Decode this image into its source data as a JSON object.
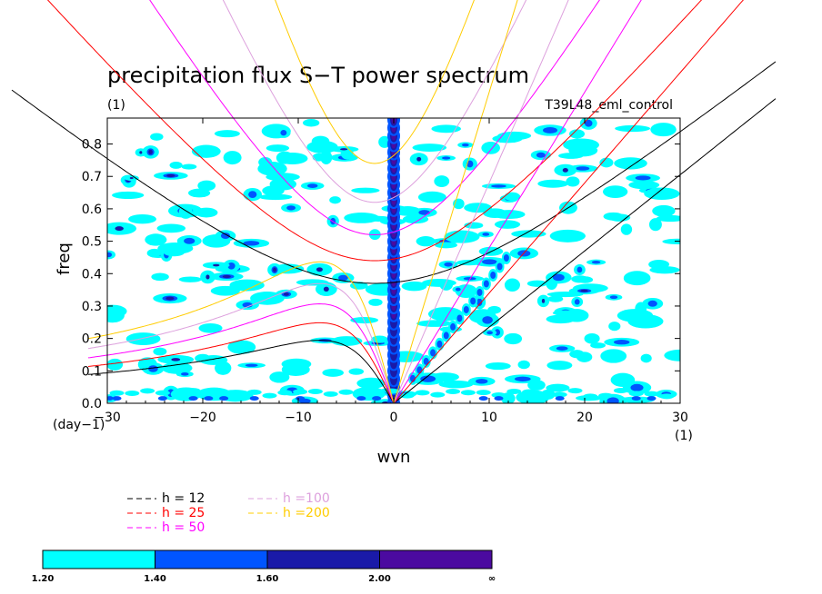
{
  "chart_data": {
    "type": "heatmap",
    "title": "precipitation flux S−T power spectrum",
    "subtitle_left": "(1)",
    "subtitle_right": "T39L48_eml_control",
    "xlabel": "wvn",
    "ylabel": "freq",
    "x_unit_label": "(1)",
    "y_unit_label": "(day−1)",
    "xlim": [
      -30,
      30
    ],
    "ylim": [
      0,
      0.88
    ],
    "xticks": [
      -30,
      -20,
      -10,
      0,
      10,
      20,
      30
    ],
    "xtick_labels": [
      "−30",
      "−20",
      "−10",
      "0",
      "10",
      "20",
      "30"
    ],
    "yticks": [
      0,
      0.1,
      0.2,
      0.3,
      0.4,
      0.5,
      0.6,
      0.7,
      0.8
    ],
    "ytick_labels": [
      "0.0",
      "0.1",
      "0.2",
      "0.3",
      "0.4",
      "0.5",
      "0.6",
      "0.7",
      "0.8"
    ],
    "contour_levels": [
      "1.20",
      "1.40",
      "1.60",
      "2.00",
      "∞"
    ],
    "level_colors": [
      "#00ffff",
      "#0055ff",
      "#1a1aa8",
      "#4b0aa0"
    ],
    "dispersion_curves": [
      {
        "name": "h = 12",
        "color": "#000000",
        "kelvin_slope": 0.0235,
        "mrg_min_freq": 0.37,
        "ig_min_freq": 0.37
      },
      {
        "name": "h = 25",
        "color": "#ff0000",
        "kelvin_slope": 0.034,
        "mrg_min_freq": 0.44,
        "ig_min_freq": 0.44
      },
      {
        "name": "h = 50",
        "color": "#ff00ff",
        "kelvin_slope": 0.048,
        "mrg_min_freq": 0.52,
        "ig_min_freq": 0.52
      },
      {
        "name": "h =100",
        "color": "#dda0dd",
        "kelvin_slope": 0.068,
        "mrg_min_freq": 0.62,
        "ig_min_freq": 0.62
      },
      {
        "name": "h =200",
        "color": "#ffcc00",
        "kelvin_slope": 0.096,
        "mrg_min_freq": 0.74,
        "ig_min_freq": 0.74
      }
    ],
    "grid": false,
    "legend_position": "below-left"
  }
}
